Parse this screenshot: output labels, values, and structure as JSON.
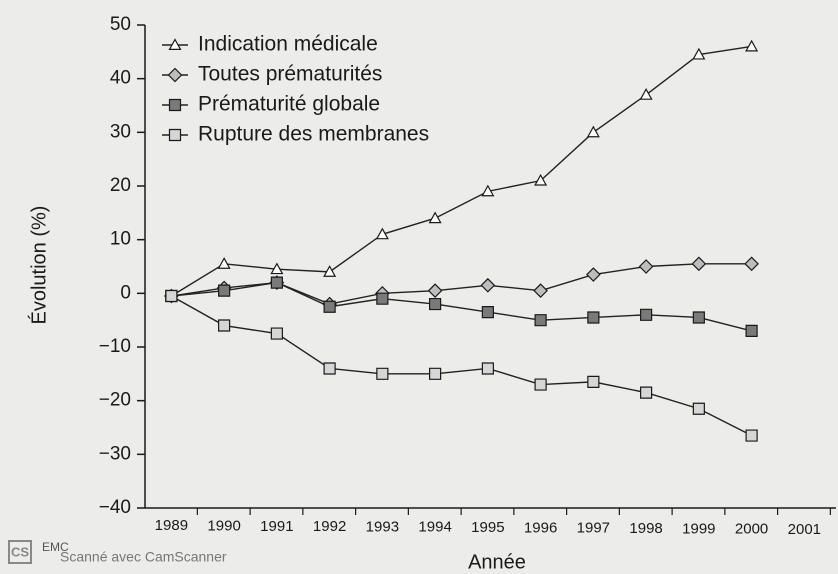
{
  "chart_data": {
    "type": "line",
    "ylabel": "Évolution (%)",
    "xlabel": "Année",
    "x": [
      1989,
      1990,
      1991,
      1992,
      1993,
      1994,
      1995,
      1996,
      1997,
      1998,
      1999,
      2000
    ],
    "series": [
      {
        "name": "Indication médicale",
        "color": "#222222",
        "marker": "triangle",
        "marker_fill": "#ffffff",
        "values": [
          -0.5,
          5.5,
          4.5,
          4,
          11,
          14,
          19,
          21,
          30,
          37,
          44.5,
          46
        ]
      },
      {
        "name": "Toutes prématurités",
        "color": "#222222",
        "marker": "diamond",
        "marker_fill": "#bdbdbd",
        "values": [
          -0.5,
          1,
          2,
          -2,
          0,
          0.5,
          1.5,
          0.5,
          3.5,
          5,
          5.5,
          5.5
        ]
      },
      {
        "name": "Prématurité globale",
        "color": "#222222",
        "marker": "square",
        "marker_fill": "#7a7a7a",
        "values": [
          -0.5,
          0.5,
          2,
          -2.5,
          -1,
          -2,
          -3.5,
          -5,
          -4.5,
          -4,
          -4.5,
          -7
        ]
      },
      {
        "name": "Rupture des membranes",
        "color": "#222222",
        "marker": "square",
        "marker_fill": "#d6d6d6",
        "values": [
          -0.5,
          -6,
          -7.5,
          -14,
          -15,
          -15,
          -14,
          -17,
          -16.5,
          -18.5,
          -21.5,
          -26.5
        ]
      }
    ],
    "xlim": [
      1988.5,
      2001.6
    ],
    "xticks": [
      1989,
      1990,
      1991,
      1992,
      1993,
      1994,
      1995,
      1996,
      1997,
      1998,
      1999,
      2000,
      2001
    ],
    "ylim": [
      -40,
      50
    ],
    "yticks": [
      {
        "value": -40,
        "label": "−40"
      },
      {
        "value": -30,
        "label": "−30"
      },
      {
        "value": -20,
        "label": "−20"
      },
      {
        "value": -10,
        "label": "−10"
      },
      0,
      10,
      20,
      30,
      40,
      50
    ],
    "grid": false,
    "legend": "upper left"
  },
  "watermark": {
    "logo": "CS",
    "stamp": "EMC",
    "text": "Scanné avec CamScanner"
  }
}
